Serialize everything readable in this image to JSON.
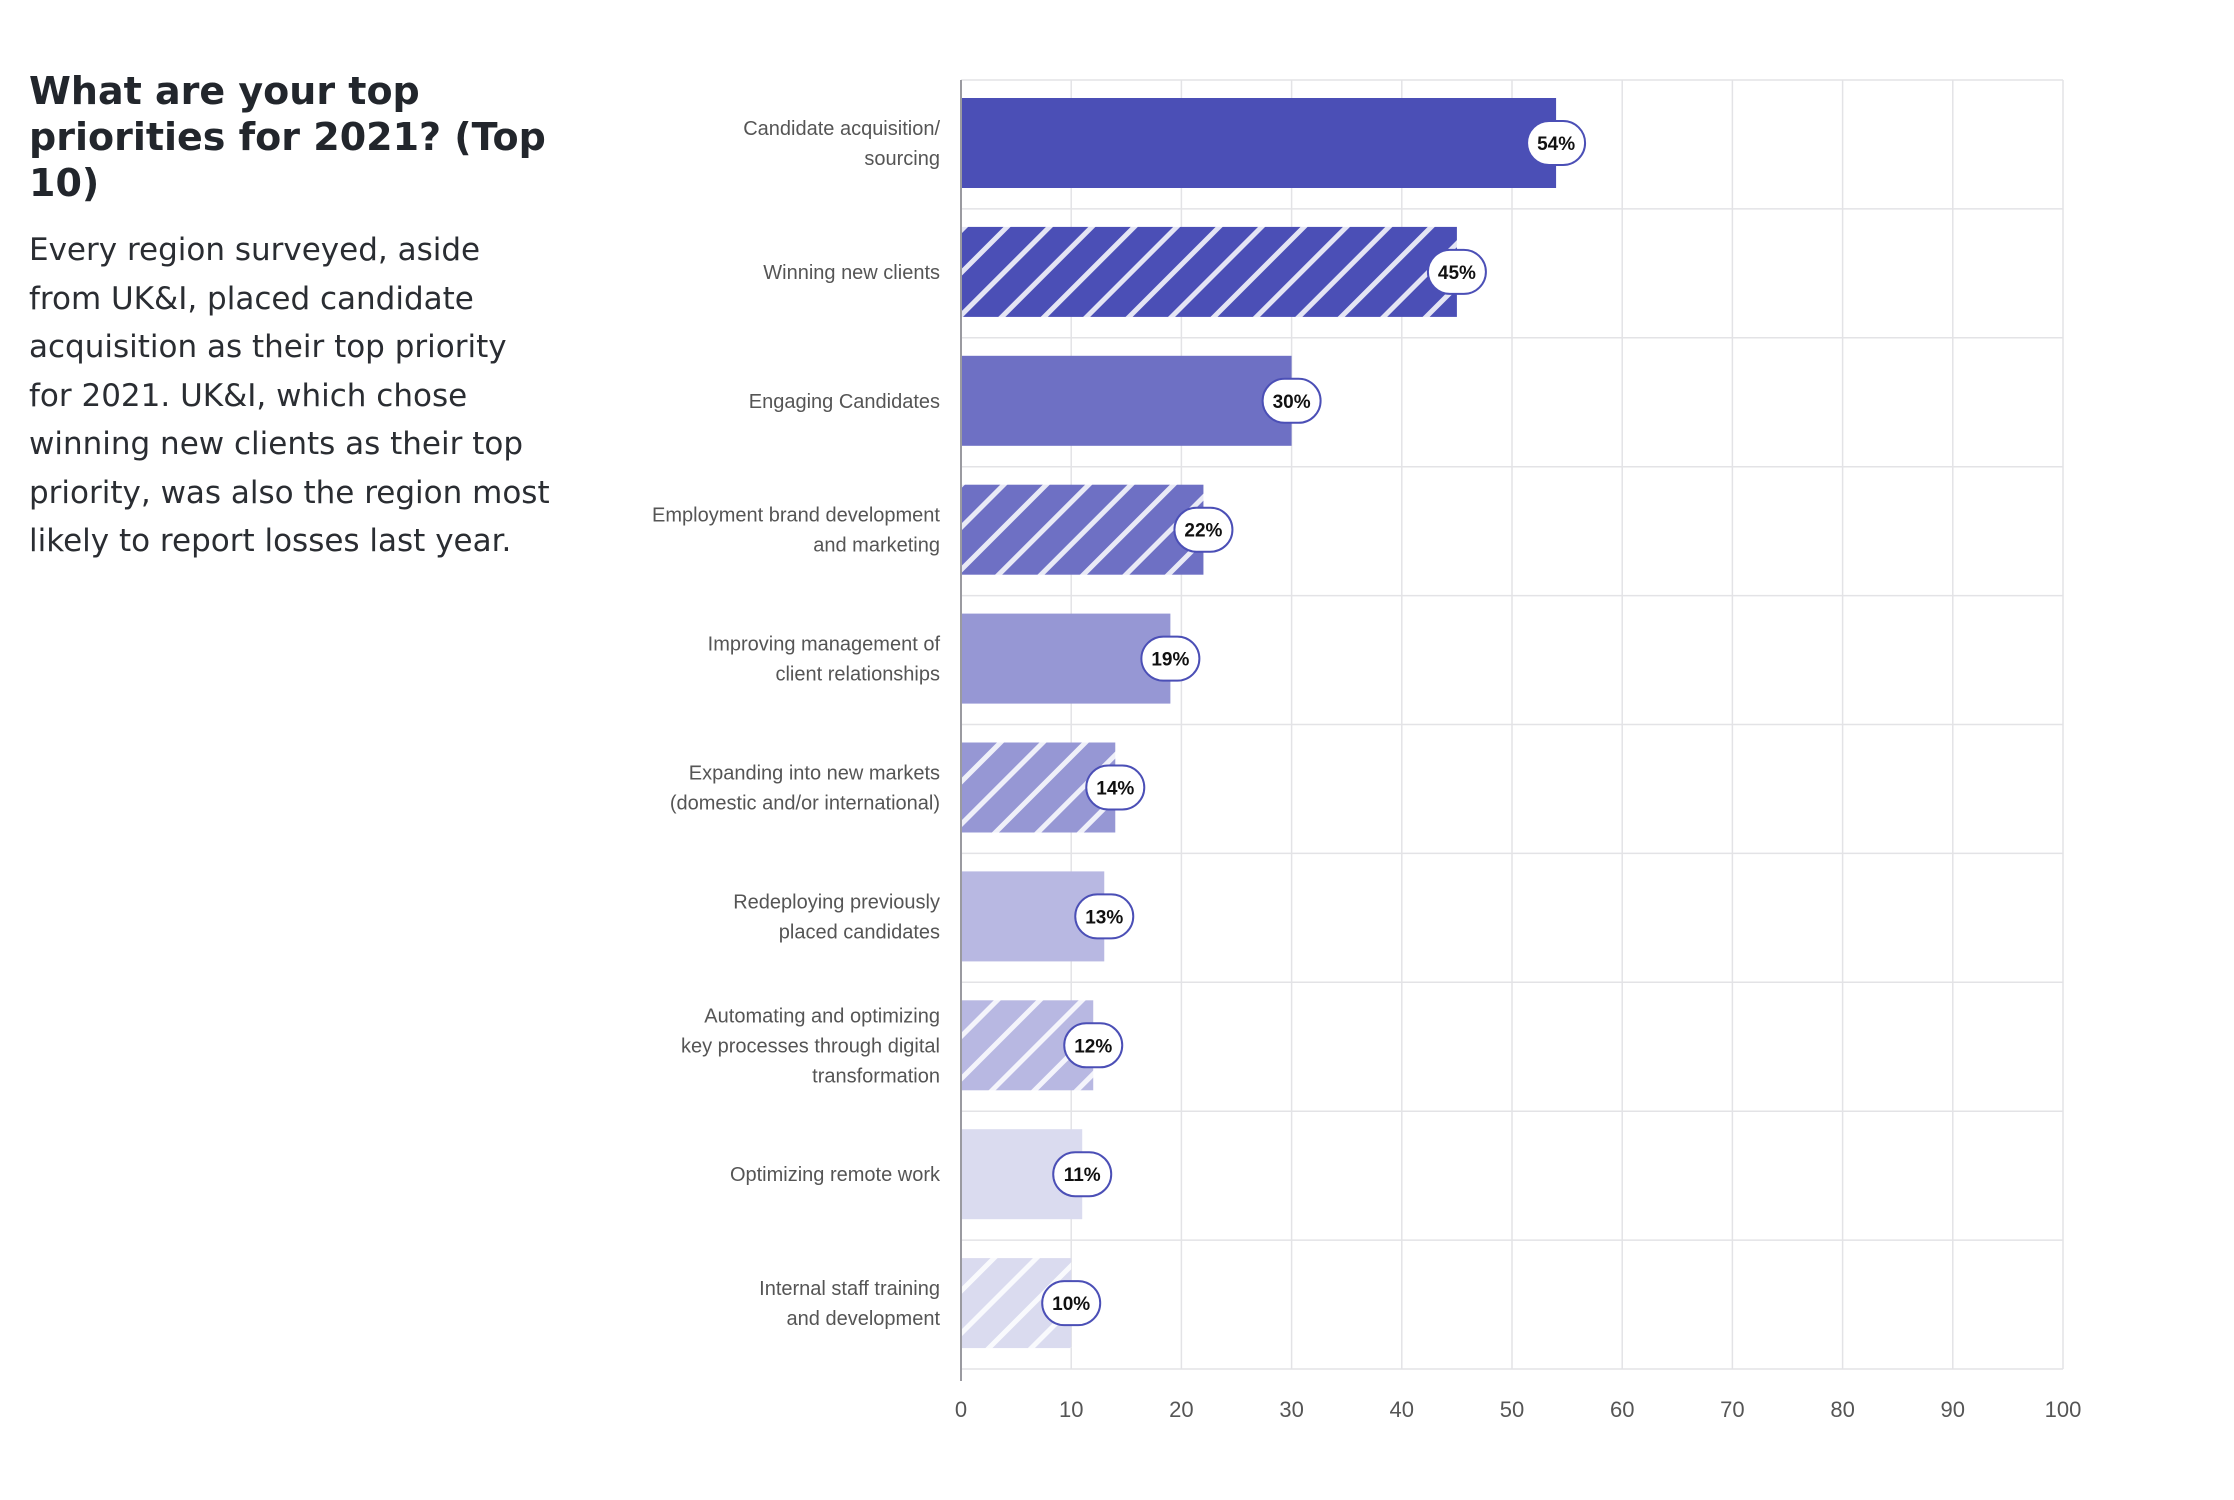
{
  "intro": {
    "heading": "What are your top priorities for 2021? (Top 10)",
    "body": "Every region surveyed, aside from UK&I, placed candidate acquisition as their top priority for 2021. UK&I, which chose winning new clients as their top priority, was also the region most likely to report losses last year."
  },
  "chart_data": {
    "type": "bar",
    "orientation": "horizontal",
    "categories": [
      [
        "Candidate acquisition/",
        "sourcing"
      ],
      [
        "Winning new clients"
      ],
      [
        "Engaging Candidates"
      ],
      [
        "Employment brand development",
        "and marketing"
      ],
      [
        "Improving management of",
        "client relationships"
      ],
      [
        "Expanding into new markets",
        "(domestic and/or international)"
      ],
      [
        "Redeploying previously",
        "placed candidates"
      ],
      [
        "Automating and optimizing",
        "key processes through digital",
        "transformation"
      ],
      [
        "Optimizing remote work"
      ],
      [
        "Internal staff training",
        "and development"
      ]
    ],
    "values": [
      54,
      45,
      30,
      22,
      19,
      14,
      13,
      12,
      11,
      10
    ],
    "data_labels": [
      "54%",
      "45%",
      "30%",
      "22%",
      "19%",
      "14%",
      "13%",
      "12%",
      "11%",
      "10%"
    ],
    "bar_colors": [
      "#4b4fb6",
      "#4b4fb6",
      "#6e70c4",
      "#6e70c4",
      "#9697d4",
      "#9697d4",
      "#b8b8e2",
      "#b8b8e2",
      "#dadbef",
      "#dadbef"
    ],
    "hatched": [
      false,
      true,
      false,
      true,
      false,
      true,
      false,
      true,
      false,
      true
    ],
    "xlim": [
      0,
      100
    ],
    "xticks": [
      0,
      10,
      20,
      30,
      40,
      50,
      60,
      70,
      80,
      90,
      100
    ],
    "grid": true,
    "legend": false,
    "label_border_color": "#4b4fb6"
  }
}
